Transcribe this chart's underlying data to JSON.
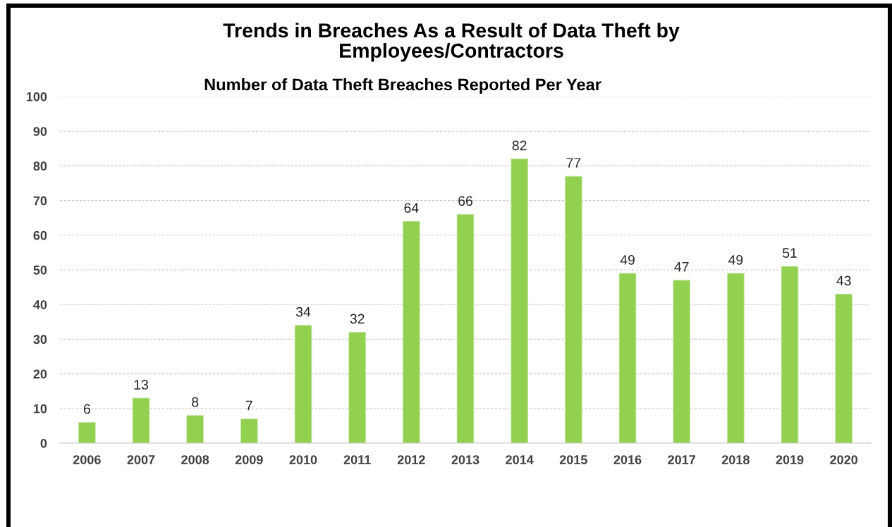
{
  "chart_data": {
    "type": "bar",
    "title": "Trends in Breaches As a Result of Data Theft by Employees/Contractors",
    "subtitle": "Number of Data Theft Breaches Reported Per Year",
    "categories": [
      "2006",
      "2007",
      "2008",
      "2009",
      "2010",
      "2011",
      "2012",
      "2013",
      "2014",
      "2015",
      "2016",
      "2017",
      "2018",
      "2019",
      "2020"
    ],
    "values": [
      6,
      13,
      8,
      7,
      34,
      32,
      64,
      66,
      82,
      77,
      49,
      47,
      49,
      51,
      43
    ],
    "color": "#92d050",
    "ylim": [
      0,
      100
    ],
    "yticks": [
      0,
      10,
      20,
      30,
      40,
      50,
      60,
      70,
      80,
      90,
      100
    ],
    "grid": "y",
    "data_labels": true
  }
}
